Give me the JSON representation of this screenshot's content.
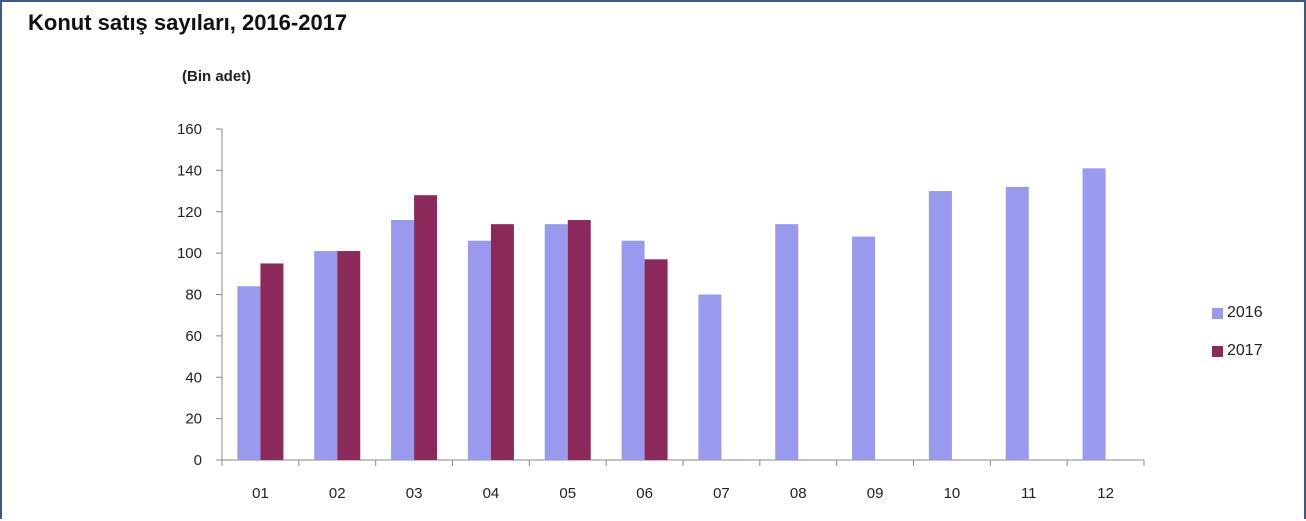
{
  "chart_data": {
    "type": "bar",
    "title": "Konut satış sayıları, 2016-2017",
    "ylabel": "(Bin adet)",
    "xlabel": "",
    "categories": [
      "01",
      "02",
      "03",
      "04",
      "05",
      "06",
      "07",
      "08",
      "09",
      "10",
      "11",
      "12"
    ],
    "ylim": [
      0,
      160
    ],
    "yticks": [
      "0",
      "20",
      "40",
      "60",
      "80",
      "100",
      "120",
      "140",
      "160"
    ],
    "series": [
      {
        "name": "2016",
        "color": "#9999ee",
        "values": [
          84,
          101,
          116,
          106,
          114,
          106,
          80,
          114,
          108,
          130,
          132,
          141
        ]
      },
      {
        "name": "2017",
        "color": "#8b2a5a",
        "values": [
          95,
          101,
          128,
          114,
          116,
          97,
          null,
          null,
          null,
          null,
          null,
          null
        ]
      }
    ],
    "legend_position": "right",
    "grid": false
  }
}
